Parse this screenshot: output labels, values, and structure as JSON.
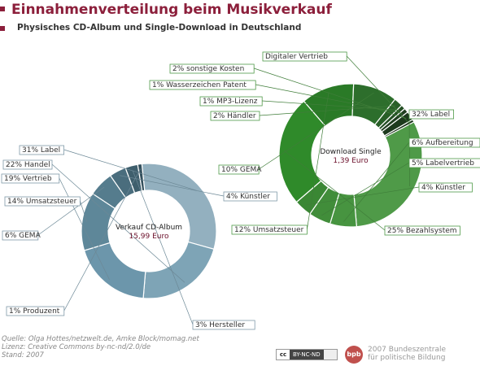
{
  "header": {
    "title": "Einnahmenverteilung beim Musikverkauf",
    "subtitle": "Physisches CD-Album und Single-Download in Deutschland"
  },
  "chart_data": [
    {
      "type": "pie",
      "center_label": "Verkauf CD-Album",
      "center_value": "15,99 Euro",
      "categories": [
        "Label",
        "Handel",
        "Vertrieb",
        "Umsatzsteuer",
        "GEMA",
        "Künstler",
        "Hersteller",
        "Produzent"
      ],
      "values": [
        31,
        22,
        19,
        14,
        6,
        4,
        3,
        1
      ],
      "labels": [
        "31% Label",
        "22% Handel",
        "19% Vertrieb",
        "14% Umsatzsteuer",
        "6% GEMA",
        "4% Künstler",
        "3% Hersteller",
        "1% Produzent"
      ],
      "colors": [
        "#93b0bf",
        "#7ea4b6",
        "#6c96ab",
        "#5e8799",
        "#557c8d",
        "#4a6d7d",
        "#3f5f6d",
        "#34505d"
      ]
    },
    {
      "type": "pie",
      "center_label": "Download Single",
      "center_value": "1,39 Euro",
      "categories": [
        "Label",
        "Aufbereitung",
        "Labelvertrieb",
        "Künstler",
        "Bezahlsystem",
        "Umsatzsteuer",
        "GEMA",
        "Händler",
        "MP3-Lizenz",
        "Wasserzeichen Patent",
        "sonstige Kosten",
        "Digitaler Vertrieb"
      ],
      "values": [
        32,
        6,
        5,
        4,
        25,
        12,
        10,
        2,
        1,
        1,
        2,
        0
      ],
      "labels": [
        "32% Label",
        "6% Aufbereitung",
        "5% Labelvertrieb",
        "4% Künstler",
        "25% Bezahlsystem",
        "12% Umsatzsteuer",
        "10% GEMA",
        "2% Händler",
        "1% MP3-Lizenz",
        "1% Wasserzeichen Patent",
        "2% sonstige Kosten",
        "Digitaler Vertrieb"
      ],
      "colors": [
        "#4f9a48",
        "#479440",
        "#418d3a",
        "#3a8734",
        "#2f8a2a",
        "#2a7a27",
        "#2d6e2c",
        "#295f28",
        "#244f24",
        "#203f20",
        "#1d3a1d",
        "#183018"
      ]
    }
  ],
  "footer": {
    "source_lines": [
      "Quelle: Olga Hottes/netzwelt.de, Amke Block/momag.net",
      "Lizenz: Creative Commons by-nc-nd/2.0/de",
      "Stand: 2007"
    ],
    "cc_icon": "cc",
    "cc_text": "BY-NC-ND",
    "bpb_logo": "bpb",
    "bpb_line1": "2007 Bundeszentrale",
    "bpb_line2": "für politische Bildung"
  }
}
